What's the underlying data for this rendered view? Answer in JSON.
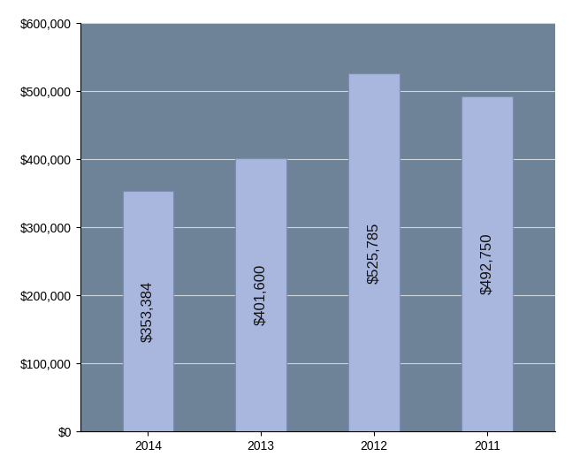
{
  "chart_data": {
    "type": "bar",
    "categories": [
      "2014",
      "2013",
      "2012",
      "2011"
    ],
    "values": [
      353384,
      401600,
      525785,
      492750
    ],
    "value_labels": [
      "$353,384",
      "$401,600",
      "$525,785",
      "$492,750"
    ],
    "data_labels": true,
    "color": "#a9b7df",
    "ylim": [
      0,
      600000
    ],
    "yticks": [
      {
        "value": 0,
        "label": "$0"
      },
      {
        "value": 100000,
        "label": "$100,000"
      },
      {
        "value": 200000,
        "label": "$200,000"
      },
      {
        "value": 300000,
        "label": "$300,000"
      },
      {
        "value": 400000,
        "label": "$400,000"
      },
      {
        "value": 500000,
        "label": "$500,000"
      },
      {
        "value": 600000,
        "label": "$600,000"
      }
    ],
    "grid": true
  }
}
